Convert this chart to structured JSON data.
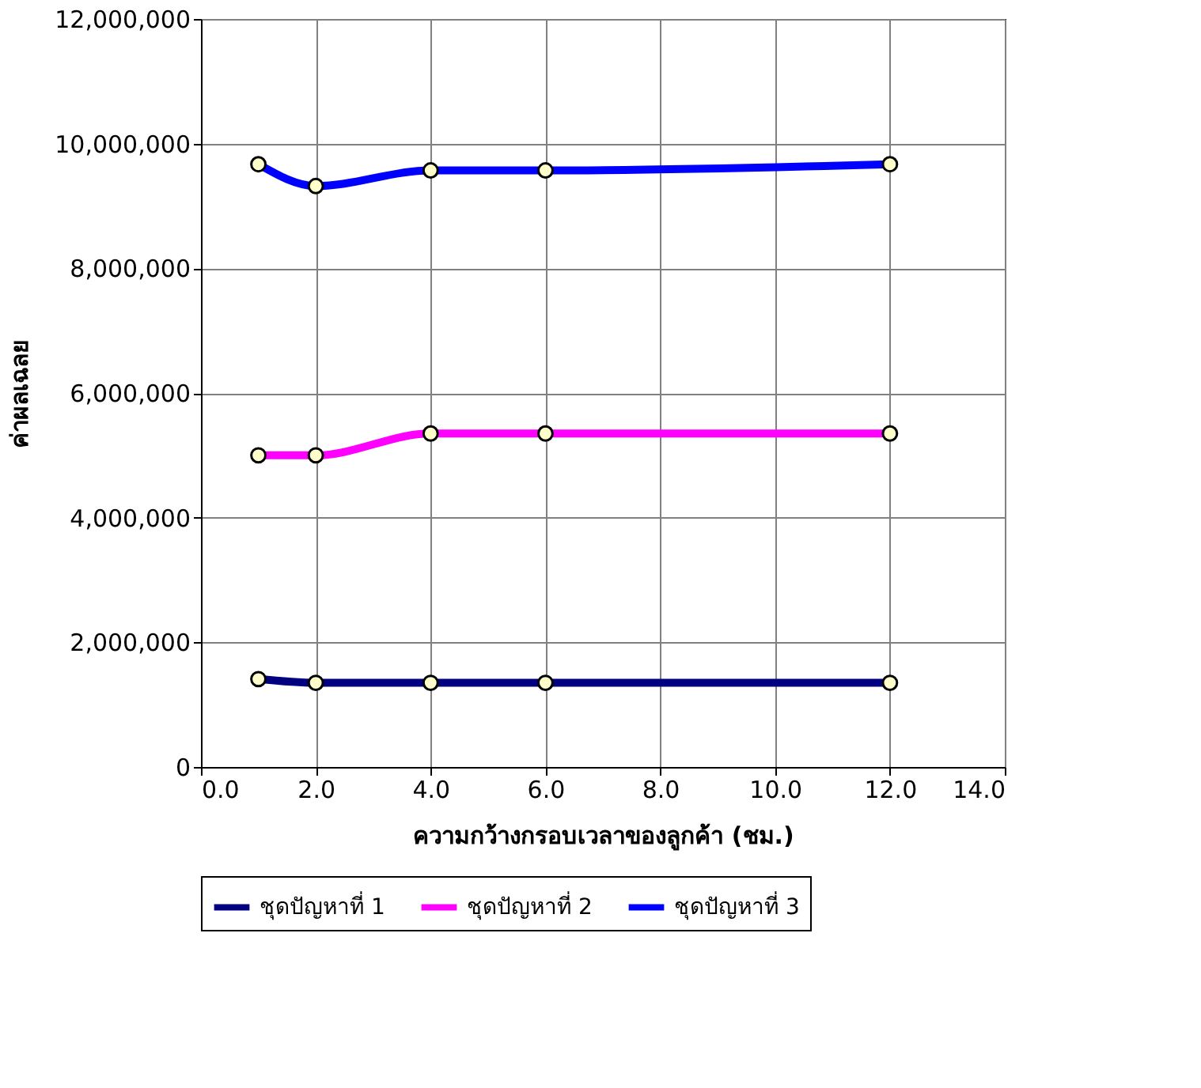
{
  "chart_data": {
    "type": "line",
    "xlabel": "ความกว้างกรอบเวลาของลูกค้า (ชม.)",
    "ylabel": "ค่าผลเฉลย",
    "x": [
      1,
      2,
      4,
      6,
      12
    ],
    "series": [
      {
        "name": "ชุดปัญหาที่ 1",
        "color": "#000080",
        "values": [
          1410000,
          1350000,
          1350000,
          1350000,
          1350000
        ]
      },
      {
        "name": "ชุดปัญหาที่ 2",
        "color": "#ff00ff",
        "values": [
          5000000,
          5000000,
          5350000,
          5350000,
          5350000
        ]
      },
      {
        "name": "ชุดปัญหาที่ 3",
        "color": "#0000ff",
        "values": [
          9670000,
          9320000,
          9570000,
          9570000,
          9670000
        ]
      }
    ],
    "xlim": [
      0,
      14
    ],
    "xticks": [
      {
        "value": 0,
        "label": "0.0"
      },
      {
        "value": 2,
        "label": "2.0"
      },
      {
        "value": 4,
        "label": "4.0"
      },
      {
        "value": 6,
        "label": "6.0"
      },
      {
        "value": 8,
        "label": "8.0"
      },
      {
        "value": 10,
        "label": "10.0"
      },
      {
        "value": 12,
        "label": "12.0"
      },
      {
        "value": 14,
        "label": "14.0"
      }
    ],
    "ylim": [
      0,
      12000000
    ],
    "yticks": [
      {
        "value": 0,
        "label": "0"
      },
      {
        "value": 2000000,
        "label": "2,000,000"
      },
      {
        "value": 4000000,
        "label": "4,000,000"
      },
      {
        "value": 6000000,
        "label": "6,000,000"
      },
      {
        "value": 8000000,
        "label": "8,000,000"
      },
      {
        "value": 10000000,
        "label": "10,000,000"
      },
      {
        "value": 12000000,
        "label": "12,000,000"
      }
    ],
    "grid": true,
    "legend": "bottom",
    "marker": "circle",
    "line_style": "solid"
  }
}
